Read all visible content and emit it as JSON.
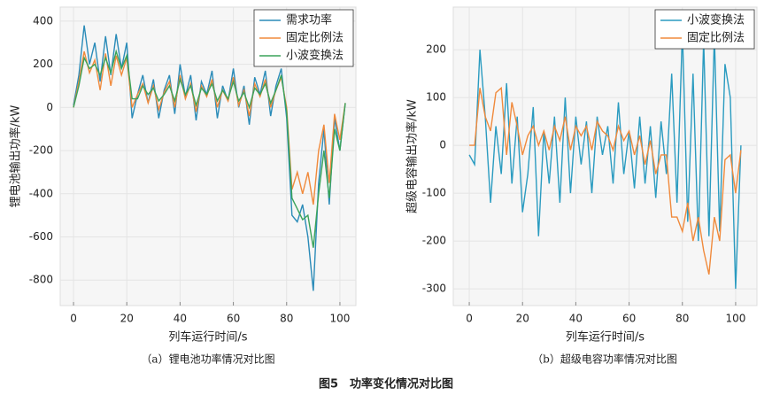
{
  "chart_data": [
    {
      "type": "line",
      "ylabel": "锂电池输出功率/kW",
      "xlabel": "列车运行时间/s",
      "caption": "（a）锂电池功率情况对比图",
      "x": [
        0,
        2,
        4,
        6,
        8,
        10,
        12,
        14,
        16,
        18,
        20,
        22,
        24,
        26,
        28,
        30,
        32,
        34,
        36,
        38,
        40,
        42,
        44,
        46,
        48,
        50,
        52,
        54,
        56,
        58,
        60,
        62,
        64,
        66,
        68,
        70,
        72,
        74,
        76,
        78,
        80,
        82,
        84,
        86,
        88,
        90,
        92,
        94,
        96,
        98,
        100,
        102
      ],
      "series": [
        {
          "name": "需求功率",
          "color": "#2a8bb8",
          "values": [
            10,
            150,
            380,
            200,
            300,
            120,
            330,
            150,
            340,
            180,
            300,
            -50,
            60,
            150,
            20,
            130,
            -50,
            80,
            150,
            -30,
            200,
            50,
            150,
            -60,
            120,
            60,
            170,
            -50,
            100,
            30,
            180,
            0,
            100,
            -80,
            140,
            60,
            170,
            -40,
            100,
            180,
            -50,
            -500,
            -530,
            -450,
            -600,
            -850,
            -350,
            -100,
            -450,
            -50,
            -200,
            20
          ]
        },
        {
          "name": "固定比例法",
          "color": "#f08a3c",
          "values": [
            0,
            120,
            260,
            160,
            220,
            80,
            250,
            100,
            240,
            150,
            230,
            0,
            60,
            110,
            20,
            100,
            -10,
            70,
            120,
            0,
            150,
            40,
            110,
            -20,
            100,
            50,
            130,
            0,
            80,
            30,
            140,
            10,
            80,
            -40,
            110,
            50,
            130,
            0,
            80,
            140,
            0,
            -380,
            -300,
            -400,
            -300,
            -450,
            -200,
            -80,
            -350,
            -30,
            -150,
            20
          ]
        },
        {
          "name": "小波变换法",
          "color": "#3aa35a",
          "values": [
            0,
            100,
            230,
            180,
            200,
            150,
            230,
            160,
            260,
            180,
            240,
            40,
            40,
            100,
            60,
            90,
            30,
            60,
            100,
            30,
            130,
            60,
            100,
            10,
            90,
            60,
            110,
            30,
            80,
            40,
            120,
            30,
            70,
            0,
            90,
            60,
            110,
            20,
            80,
            150,
            -20,
            -420,
            -470,
            -520,
            -500,
            -650,
            -400,
            -200,
            -420,
            -100,
            -200,
            20
          ]
        }
      ],
      "xlim": [
        -5,
        106
      ],
      "xticks": [
        0,
        20,
        40,
        60,
        80,
        100
      ],
      "ylim": [
        -918,
        465
      ],
      "yticks": [
        -800,
        -600,
        -400,
        -200,
        0,
        200,
        400
      ],
      "grid": true,
      "legend": "upper right"
    },
    {
      "type": "line",
      "ylabel": "超级电容输出功率/kW",
      "xlabel": "列车运行时间/s",
      "caption": "（b）超级电容功率情况对比图",
      "x": [
        0,
        2,
        4,
        6,
        8,
        10,
        12,
        14,
        16,
        18,
        20,
        22,
        24,
        26,
        28,
        30,
        32,
        34,
        36,
        38,
        40,
        42,
        44,
        46,
        48,
        50,
        52,
        54,
        56,
        58,
        60,
        62,
        64,
        66,
        68,
        70,
        72,
        74,
        76,
        78,
        80,
        82,
        84,
        86,
        88,
        90,
        92,
        94,
        96,
        98,
        100,
        102
      ],
      "series": [
        {
          "name": "小波变换法",
          "color": "#2a9bc0",
          "values": [
            -20,
            -40,
            200,
            60,
            -120,
            40,
            -60,
            130,
            -80,
            60,
            -140,
            -60,
            80,
            -190,
            30,
            -80,
            60,
            -120,
            100,
            -100,
            60,
            -40,
            50,
            -100,
            60,
            -20,
            40,
            -80,
            90,
            -60,
            30,
            -90,
            60,
            -80,
            40,
            -110,
            50,
            -60,
            150,
            -120,
            240,
            -160,
            150,
            -200,
            220,
            -190,
            230,
            -180,
            170,
            100,
            -300,
            0
          ]
        },
        {
          "name": "固定比例法",
          "color": "#f08a3c",
          "values": [
            0,
            0,
            120,
            60,
            30,
            110,
            120,
            -20,
            90,
            40,
            -20,
            20,
            40,
            0,
            30,
            -10,
            40,
            10,
            60,
            -10,
            40,
            20,
            40,
            -10,
            50,
            30,
            20,
            -10,
            40,
            10,
            30,
            -20,
            20,
            -40,
            10,
            -60,
            -20,
            -20,
            -150,
            -150,
            -180,
            -120,
            -200,
            -150,
            -220,
            -270,
            -150,
            -200,
            -30,
            -20,
            -100,
            -10
          ]
        }
      ],
      "xlim": [
        -6,
        108
      ],
      "xticks": [
        0,
        20,
        40,
        60,
        80,
        100
      ],
      "ylim": [
        -335,
        289
      ],
      "yticks": [
        -300,
        -200,
        -100,
        0,
        100,
        200
      ],
      "grid": true,
      "legend": "upper right"
    }
  ],
  "figure_caption": "图5　功率变化情况对比图"
}
